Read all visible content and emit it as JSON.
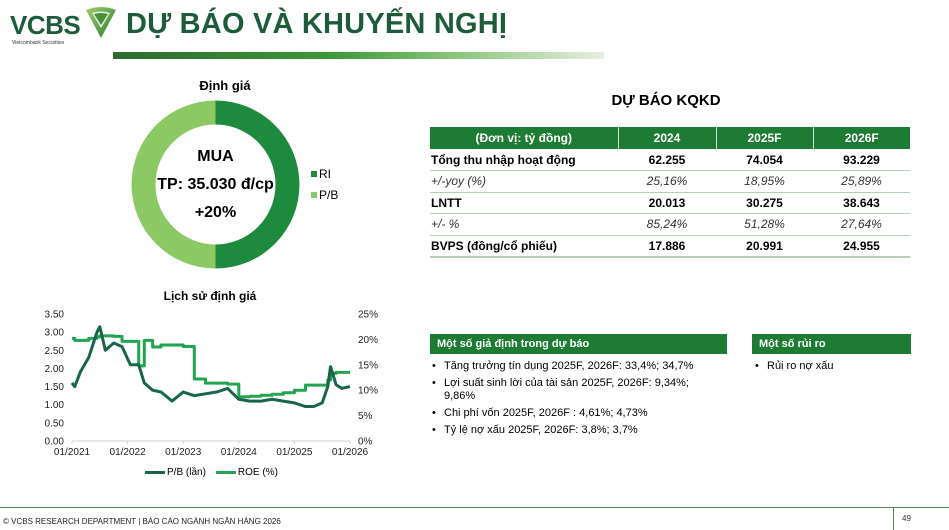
{
  "header": {
    "logo_text": "VCBS",
    "logo_subtext": "Vietcombank Securities",
    "title": "DỰ BÁO VÀ KHUYẾN NGHỊ"
  },
  "valuation": {
    "title": "Định giá",
    "recommendation": "MUA",
    "target_price": "TP: 35.030 đ/cp",
    "upside": "+20%",
    "legend": [
      {
        "label": "RI",
        "color": "#1e8a3d"
      },
      {
        "label": "P/B",
        "color": "#8cc965"
      }
    ]
  },
  "forecast": {
    "title": "DỰ BÁO KQKD",
    "headers": [
      "(Đơn vị: tỷ đồng)",
      "2024",
      "2025F",
      "2026F"
    ],
    "rows": [
      {
        "label": "Tổng thu nhập hoạt động",
        "values": [
          "62.255",
          "74.054",
          "93.229"
        ],
        "style": "bold"
      },
      {
        "label": "+/-yoy (%)",
        "values": [
          "25,16%",
          "18,95%",
          "25,89%"
        ],
        "style": "italic"
      },
      {
        "label": "LNTT",
        "values": [
          "20.013",
          "30.275",
          "38.643"
        ],
        "style": "bold"
      },
      {
        "label": "+/- %",
        "values": [
          "85,24%",
          "51,28%",
          "27,64%"
        ],
        "style": "italic"
      },
      {
        "label": "BVPS (đồng/cổ phiếu)",
        "values": [
          "17.886",
          "20.991",
          "24.955"
        ],
        "style": "bold"
      }
    ]
  },
  "history": {
    "title": "Lịch sử định giá",
    "legend": [
      {
        "label": "P/B (lần)",
        "color": "#17664a"
      },
      {
        "label": "ROE (%)",
        "color": "#22a550"
      }
    ]
  },
  "assumptions": {
    "title": "Một số giả định trong dự báo",
    "items": [
      "Tăng trưởng tín dụng 2025F, 2026F: 33,4%; 34,7%",
      "Lợi suất sinh lời của tài sản 2025F, 2026F: 9,34%; 9,86%",
      "Chi phí vốn 2025F, 2026F : 4,61%; 4,73%",
      "Tỷ lệ nợ xấu 2025F, 2026F: 3,8%; 3,7%"
    ]
  },
  "risks": {
    "title": "Một số rủi ro",
    "items": [
      "Rủi ro nợ xấu"
    ]
  },
  "footer": {
    "text": "© VCBS RESEARCH DEPARTMENT | BÁO CÁO NGÀNH NGÂN HÀNG 2026",
    "page_number": "49"
  },
  "chart_data": [
    {
      "type": "pie",
      "subtype": "donut",
      "title": "Định giá",
      "categories": [
        "RI",
        "P/B"
      ],
      "values": [
        50,
        50
      ],
      "colors": [
        "#1e8a3d",
        "#8cc965"
      ],
      "center_text": [
        "MUA",
        "TP: 35.030 đ/cp",
        "+20%"
      ],
      "legend_position": "right"
    },
    {
      "type": "line",
      "title": "Lịch sử định giá",
      "xlabel": "",
      "x_ticks": [
        "01/2021",
        "01/2022",
        "01/2023",
        "01/2024",
        "01/2025",
        "01/2026"
      ],
      "y_left": {
        "ticks": [
          "0.00",
          "0.50",
          "1.00",
          "1.50",
          "2.00",
          "2.50",
          "3.00",
          "3.50"
        ],
        "range": [
          0,
          3.5
        ]
      },
      "y_right": {
        "ticks": [
          "0%",
          "5%",
          "10%",
          "15%",
          "20%",
          "25%"
        ],
        "range": [
          0,
          25
        ]
      },
      "grid": false,
      "legend_position": "bottom",
      "x": [
        "2021.00",
        "2021.05",
        "2021.15",
        "2021.30",
        "2021.45",
        "2021.50",
        "2021.60",
        "2021.75",
        "2021.90",
        "2022.05",
        "2022.20",
        "2022.30",
        "2022.45",
        "2022.60",
        "2022.80",
        "2023.00",
        "2023.20",
        "2023.40",
        "2023.60",
        "2023.80",
        "2024.00",
        "2024.20",
        "2024.40",
        "2024.60",
        "2024.80",
        "2025.00",
        "2025.20",
        "2025.35",
        "2025.50",
        "2025.60",
        "2025.65",
        "2025.75",
        "2025.85",
        "2026.00"
      ],
      "series": [
        {
          "name": "P/B (lần)",
          "axis": "left",
          "color": "#17664a",
          "values": [
            1.6,
            1.5,
            1.9,
            2.3,
            3.0,
            3.15,
            2.5,
            2.7,
            2.6,
            2.1,
            2.1,
            1.6,
            1.4,
            1.35,
            1.1,
            1.35,
            1.25,
            1.3,
            1.35,
            1.45,
            1.15,
            1.1,
            1.1,
            1.15,
            1.1,
            1.05,
            0.95,
            0.95,
            1.05,
            1.5,
            2.05,
            1.55,
            1.45,
            1.5
          ]
        },
        {
          "name": "ROE (%)",
          "axis": "right",
          "color": "#22a550",
          "values": [
            20.2,
            19.8,
            19.8,
            20.2,
            20.5,
            20.7,
            20.7,
            20.6,
            19.6,
            19.6,
            14.8,
            19.8,
            18.5,
            18.9,
            18.9,
            18.6,
            12.2,
            11.4,
            11.4,
            11.2,
            8.7,
            8.8,
            9.0,
            9.2,
            9.5,
            10.0,
            11.0,
            11.0,
            11.0,
            12.0,
            13.3,
            13.5,
            13.5,
            13.5
          ]
        }
      ]
    }
  ]
}
